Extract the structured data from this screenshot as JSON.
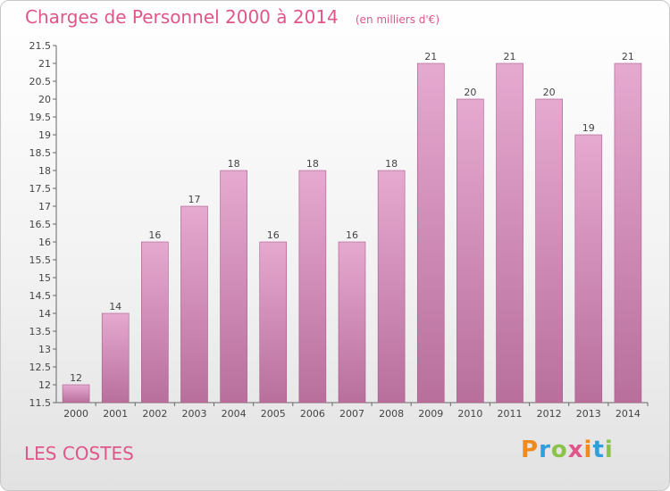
{
  "chart_data": {
    "type": "bar",
    "title": "Charges de Personnel 2000 à 2014",
    "unit_note": "(en milliers d'€)",
    "categories": [
      "2000",
      "2001",
      "2002",
      "2003",
      "2004",
      "2005",
      "2006",
      "2007",
      "2008",
      "2009",
      "2010",
      "2011",
      "2012",
      "2013",
      "2014"
    ],
    "values": [
      12,
      14,
      16,
      17,
      18,
      16,
      18,
      16,
      18,
      21,
      20,
      21,
      20,
      19,
      21
    ],
    "value_labels": [
      "12",
      "14",
      "16",
      "17",
      "18",
      "16",
      "18",
      "16",
      "18",
      "21",
      "20",
      "21",
      "20",
      "19",
      "21"
    ],
    "ylim": [
      11.5,
      21.5
    ],
    "yticks": [
      11.5,
      12,
      12.5,
      13,
      13.5,
      14,
      14.5,
      15,
      15.5,
      16,
      16.5,
      17,
      17.5,
      18,
      18.5,
      19,
      19.5,
      20,
      20.5,
      21,
      21.5
    ],
    "ytick_labels": [
      "11.5",
      "12",
      "12.5",
      "13",
      "13.5",
      "14",
      "14.5",
      "15",
      "15.5",
      "16",
      "16.5",
      "17",
      "17.5",
      "18",
      "18.5",
      "19",
      "19.5",
      "20",
      "20.5",
      "21",
      "21.5"
    ],
    "grid": false,
    "bar_color_top": "#e6a9d0",
    "bar_color_bottom": "#b86f9c",
    "bar_edge_color": "#a85a8a"
  },
  "commune": "LES COSTES",
  "logo": {
    "letters": [
      "P",
      "r",
      "o",
      "x",
      "i",
      "t",
      "i"
    ],
    "colors": [
      "#f08a1c",
      "#2e9fd8",
      "#8bc34a",
      "#e0568a",
      "#f08a1c",
      "#2e9fd8",
      "#8bc34a"
    ]
  }
}
